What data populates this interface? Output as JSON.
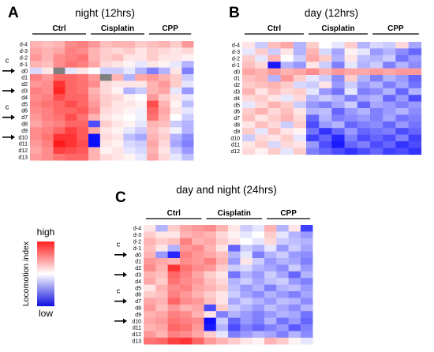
{
  "colors": {
    "high": "#ff0000",
    "mid": "#ffffff",
    "low": "#0000ff",
    "missing": "#808080",
    "text": "#000000"
  },
  "legend": {
    "title": "Locomotion index",
    "high_label": "high",
    "low_label": "low"
  },
  "chart_data": [
    {
      "type": "heatmap",
      "panel": "A",
      "title": "night (12hrs)",
      "groups": [
        "Ctrl",
        "Cisplatin",
        "CPP"
      ],
      "columns_per_group": [
        5,
        5,
        4
      ],
      "rows": [
        "d-4",
        "d-3",
        "d-2",
        "d-1",
        "d0",
        "d1",
        "d2",
        "d3",
        "d4",
        "d5",
        "d6",
        "d7",
        "d8",
        "d9",
        "d10",
        "d11",
        "d12",
        "d13"
      ],
      "arrow_rows": [
        "d0",
        "d3",
        "d7",
        "d10"
      ],
      "c_marks": [
        "d0",
        "d7"
      ],
      "value_scale": [
        -1,
        1
      ],
      "missing_cells": [
        [
          4,
          2
        ],
        [
          5,
          6
        ]
      ],
      "values": [
        [
          0.3,
          0.25,
          0.3,
          0.45,
          0.5,
          0.4,
          0.25,
          0.3,
          0.3,
          0.2,
          0.25,
          0.3,
          0.2,
          0.4
        ],
        [
          0.35,
          0.3,
          0.35,
          0.5,
          0.45,
          0.3,
          0.2,
          0.15,
          0.2,
          0.1,
          0.2,
          0.15,
          0.1,
          0.15
        ],
        [
          0.4,
          0.3,
          0.45,
          0.5,
          0.55,
          0.3,
          0.2,
          0.25,
          0.1,
          0.1,
          0.2,
          0.1,
          0.1,
          0.05
        ],
        [
          0.3,
          0.25,
          0.45,
          0.55,
          0.5,
          0.35,
          0.15,
          0.1,
          0.05,
          -0.1,
          0.1,
          0.05,
          -0.1,
          -0.3
        ],
        [
          -0.15,
          0.1,
          0,
          -0.1,
          0.1,
          0,
          -0.2,
          -0.2,
          -0.1,
          -0.3,
          -0.5,
          -0.3,
          0.1,
          -0.5
        ],
        [
          0.5,
          0.4,
          0.6,
          0.6,
          0.55,
          0.4,
          0,
          0.3,
          -0.3,
          0.35,
          0.4,
          0.3,
          0.2,
          -0.2
        ],
        [
          0.4,
          0.45,
          0.8,
          0.6,
          0.55,
          0.45,
          0.15,
          0.1,
          0.1,
          0.1,
          0.3,
          0.4,
          0.2,
          -0.1
        ],
        [
          0.5,
          0.45,
          0.85,
          0.6,
          0.55,
          0.3,
          0.15,
          0.05,
          -0.3,
          -0.2,
          0.3,
          0.35,
          -0.1,
          -0.4
        ],
        [
          0.45,
          0.5,
          0.7,
          0.6,
          0.6,
          0.35,
          0.2,
          0.15,
          0.05,
          0,
          0.4,
          0.2,
          0.1,
          -0.1
        ],
        [
          0.5,
          0.55,
          0.6,
          0.7,
          0.6,
          0.4,
          0.2,
          0.1,
          0.1,
          0.05,
          0.7,
          0.3,
          0.05,
          -0.25
        ],
        [
          0.45,
          0.5,
          0.6,
          0.6,
          0.65,
          0.45,
          0.15,
          0.1,
          0.05,
          -0.05,
          0.6,
          0.35,
          0.1,
          -0.1
        ],
        [
          0.4,
          0.5,
          0.55,
          0.7,
          0.55,
          0.3,
          0.1,
          0.05,
          0,
          -0.05,
          0.55,
          0.3,
          0,
          -0.2
        ],
        [
          0.35,
          0.45,
          0.5,
          0.6,
          0.6,
          -0.7,
          0.2,
          0.1,
          0.05,
          -0.1,
          0.3,
          0.25,
          -0.2,
          -0.3
        ],
        [
          0.45,
          0.5,
          0.6,
          0.75,
          0.65,
          0.35,
          0.1,
          0.05,
          -0.1,
          -0.2,
          0.25,
          0.15,
          -0.05,
          -0.3
        ],
        [
          0.45,
          0.55,
          0.8,
          0.8,
          0.65,
          -0.95,
          0.15,
          0.1,
          -0.25,
          -0.35,
          0.3,
          0.2,
          -0.3,
          -0.45
        ],
        [
          0.4,
          0.5,
          0.9,
          0.8,
          0.7,
          -0.95,
          0.1,
          0.05,
          -0.15,
          -0.2,
          0.35,
          0.15,
          -0.35,
          -0.5
        ],
        [
          0.35,
          0.45,
          0.75,
          0.7,
          0.65,
          0.3,
          0.05,
          0.1,
          -0.1,
          -0.15,
          0.3,
          0.1,
          -0.2,
          -0.4
        ],
        [
          0.4,
          0.45,
          0.55,
          0.6,
          0.6,
          0.3,
          0.15,
          0.1,
          0.05,
          -0.1,
          0.35,
          0.15,
          -0.1,
          -0.25
        ]
      ]
    },
    {
      "type": "heatmap",
      "panel": "B",
      "title": "day (12hrs)",
      "groups": [
        "Ctrl",
        "Cisplatin",
        "CPP"
      ],
      "columns_per_group": [
        5,
        5,
        4
      ],
      "rows": [
        "d-4",
        "d-3",
        "d-2",
        "d-1",
        "d0",
        "d1",
        "d2",
        "d3",
        "d4",
        "d5",
        "d6",
        "d7",
        "d8",
        "d9",
        "d10",
        "d11",
        "d12"
      ],
      "arrow_rows": [],
      "c_marks": [],
      "value_scale": [
        -1,
        1
      ],
      "missing_cells": [],
      "values": [
        [
          0.1,
          -0.2,
          0.25,
          0.35,
          -0.3,
          0.2,
          0,
          -0.1,
          0.2,
          -0.3,
          -0.15,
          -0.2,
          0.15,
          -0.35
        ],
        [
          -0.1,
          0.2,
          -0.2,
          0.1,
          -0.3,
          0.3,
          -0.15,
          -0.35,
          0.05,
          -0.1,
          -0.4,
          -0.3,
          -0.45,
          -0.6
        ],
        [
          0.2,
          -0.1,
          0.3,
          0,
          -0.2,
          0.35,
          0.2,
          -0.3,
          0.1,
          -0.25,
          -0.3,
          -0.2,
          -0.55,
          -0.4
        ],
        [
          0.25,
          0.15,
          -0.9,
          -0.3,
          -0.4,
          0.1,
          -0.2,
          -0.5,
          -0.1,
          -0.3,
          -0.2,
          -0.5,
          -0.3,
          -0.45
        ],
        [
          0.35,
          0.3,
          0.4,
          0.3,
          0.35,
          0.45,
          0.3,
          0.4,
          0.35,
          0.35,
          0.4,
          0.35,
          0.4,
          0.4
        ],
        [
          0.25,
          0.3,
          -0.3,
          0.4,
          0.2,
          -0.1,
          -0.2,
          -0.45,
          0.2,
          -0.3,
          -0.5,
          -0.3,
          -0.4,
          -0.6
        ],
        [
          0.2,
          0.25,
          0.3,
          0.2,
          -0.15,
          -0.2,
          0.1,
          -0.4,
          -0.2,
          -0.4,
          -0.3,
          -0.5,
          -0.35,
          -0.55
        ],
        [
          0.3,
          0.1,
          0.25,
          0.15,
          0.2,
          -0.1,
          -0.4,
          -0.55,
          -0.1,
          -0.5,
          -0.45,
          -0.3,
          -0.6,
          -0.3
        ],
        [
          0.15,
          0.2,
          0.1,
          -0.1,
          0.15,
          -0.3,
          -0.2,
          -0.3,
          -0.5,
          -0.35,
          -0.3,
          -0.6,
          -0.4,
          -0.7
        ],
        [
          -0.1,
          0.15,
          0.3,
          0.2,
          -0.2,
          -0.4,
          -0.5,
          -0.35,
          -0.2,
          -0.6,
          -0.35,
          -0.4,
          -0.5,
          -0.4
        ],
        [
          0.2,
          0.3,
          0.15,
          0.25,
          0.1,
          -0.3,
          -0.25,
          -0.6,
          -0.4,
          -0.3,
          -0.5,
          -0.4,
          -0.3,
          -0.45
        ],
        [
          0.25,
          0.1,
          0.2,
          0.3,
          0.15,
          -0.6,
          -0.3,
          -0.5,
          -0.45,
          -0.4,
          -0.5,
          -0.35,
          -0.55,
          -0.5
        ],
        [
          0.1,
          0.25,
          0.15,
          -0.2,
          0.2,
          -0.7,
          -0.4,
          -0.3,
          -0.6,
          -0.5,
          -0.45,
          -0.6,
          -0.4,
          -0.55
        ],
        [
          0.2,
          -0.1,
          0.25,
          0.1,
          0.05,
          -0.55,
          -0.8,
          -0.6,
          -0.4,
          -0.6,
          -0.55,
          -0.5,
          -0.7,
          -0.6
        ],
        [
          -0.2,
          0.15,
          0.1,
          0.2,
          -0.1,
          -0.75,
          -0.6,
          -0.85,
          -0.5,
          -0.7,
          -0.6,
          -0.7,
          -0.5,
          -0.75
        ],
        [
          0.1,
          0.2,
          -0.15,
          0.15,
          0.1,
          -0.4,
          -0.7,
          -0.9,
          -0.6,
          -0.5,
          -0.7,
          -0.6,
          -0.8,
          -0.7
        ],
        [
          0.15,
          0.05,
          0.2,
          -0.1,
          0.2,
          -0.5,
          -0.6,
          -0.7,
          -0.8,
          -0.7,
          -0.6,
          -0.75,
          -0.7,
          -0.8
        ]
      ]
    },
    {
      "type": "heatmap",
      "panel": "C",
      "title": "day and night (24hrs)",
      "groups": [
        "Ctrl",
        "Cisplatin",
        "CPP"
      ],
      "columns_per_group": [
        5,
        5,
        4
      ],
      "rows": [
        "d-4",
        "d-3",
        "d-2",
        "d-1",
        "d0",
        "d1",
        "d2",
        "d3",
        "d4",
        "d5",
        "d6",
        "d7",
        "d8",
        "d9",
        "d10",
        "d11",
        "d12",
        "d13"
      ],
      "arrow_rows": [
        "d0",
        "d3",
        "d7",
        "d10"
      ],
      "c_marks": [
        "d0",
        "d7"
      ],
      "value_scale": [
        -1,
        1
      ],
      "missing_cells": [],
      "values": [
        [
          0.1,
          -0.3,
          0.2,
          0.35,
          0.4,
          0.45,
          0.3,
          0.1,
          -0.2,
          -0.1,
          0.3,
          -0.3,
          0.1,
          -0.75
        ],
        [
          0.2,
          0.1,
          0.1,
          0.3,
          0.35,
          0.3,
          0.15,
          0.05,
          -0.1,
          0,
          0.2,
          -0.1,
          -0.3,
          -0.4
        ],
        [
          0.3,
          0.2,
          0.25,
          0.5,
          0.3,
          0.35,
          0.2,
          0.1,
          0,
          -0.1,
          0.15,
          -0.2,
          -0.25,
          -0.3
        ],
        [
          0.25,
          0.1,
          -0.3,
          0.4,
          0.45,
          0.3,
          0.1,
          -0.6,
          -0.2,
          -0.3,
          -0.1,
          -0.4,
          -0.2,
          -0.35
        ],
        [
          0.3,
          -0.4,
          -0.85,
          0.5,
          0.4,
          0.35,
          0.25,
          -0.3,
          -0.1,
          -0.5,
          -0.3,
          -0.2,
          -0.4,
          -0.45
        ],
        [
          0.4,
          0.35,
          0.3,
          0.45,
          0.4,
          0.5,
          0.3,
          -0.4,
          0.1,
          -0.2,
          -0.4,
          -0.3,
          -0.35,
          -0.5
        ],
        [
          0.45,
          0.3,
          0.8,
          0.55,
          0.45,
          0.4,
          0.2,
          -0.2,
          -0.15,
          -0.3,
          -0.35,
          -0.45,
          -0.2,
          -0.4
        ],
        [
          0.3,
          0.25,
          0.6,
          0.5,
          0.35,
          0.2,
          0.1,
          -0.55,
          -0.3,
          -0.4,
          -0.2,
          -0.35,
          -0.6,
          -0.3
        ],
        [
          0.35,
          0.2,
          0.55,
          0.45,
          0.4,
          0.25,
          0.15,
          -0.3,
          -0.2,
          -0.35,
          -0.25,
          -0.2,
          -0.4,
          -0.5
        ],
        [
          0.1,
          0.3,
          0.45,
          0.5,
          0.35,
          0.3,
          0.2,
          -0.25,
          -0.4,
          -0.3,
          -0.5,
          -0.3,
          -0.25,
          -0.4
        ],
        [
          0.2,
          0.25,
          0.5,
          0.4,
          0.3,
          0.2,
          0.1,
          -0.2,
          -0.35,
          -0.45,
          -0.3,
          -0.4,
          -0.5,
          -0.35
        ],
        [
          0.35,
          0.3,
          0.6,
          0.45,
          0.4,
          0.25,
          0.1,
          -0.35,
          -0.2,
          -0.3,
          -0.4,
          -0.25,
          -0.3,
          -0.45
        ],
        [
          0.4,
          0.25,
          0.4,
          0.3,
          0.35,
          -0.7,
          0.2,
          -0.2,
          -0.3,
          -0.4,
          -0.25,
          -0.35,
          -0.45,
          -0.3
        ],
        [
          0.3,
          0.35,
          0.5,
          0.45,
          0.3,
          0.1,
          -0.5,
          -0.3,
          -0.4,
          -0.5,
          -0.4,
          -0.3,
          -0.35,
          -0.55
        ],
        [
          0.35,
          0.4,
          0.55,
          0.5,
          0.45,
          -0.95,
          -0.2,
          -0.6,
          -0.4,
          -0.5,
          -0.3,
          -0.55,
          -0.4,
          -0.6
        ],
        [
          0.3,
          0.35,
          0.6,
          0.55,
          0.4,
          -0.9,
          -0.3,
          -0.7,
          -0.5,
          -0.6,
          -0.5,
          -0.4,
          -0.65,
          -0.5
        ],
        [
          0.4,
          0.3,
          0.5,
          0.45,
          0.35,
          0.2,
          -0.1,
          -0.5,
          -0.4,
          -0.3,
          -0.35,
          -0.5,
          -0.3,
          -0.45
        ],
        [
          0.55,
          0.6,
          0.75,
          0.8,
          0.6,
          0.4,
          0.3,
          0.2,
          0.1,
          0.05,
          0.3,
          0.2,
          0.05,
          -0.1
        ]
      ]
    }
  ]
}
